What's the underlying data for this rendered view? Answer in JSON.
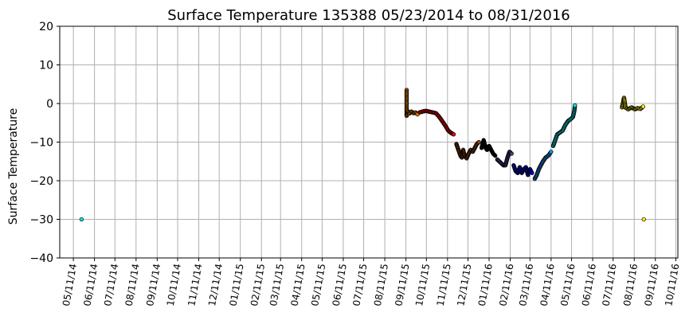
{
  "chart_data": {
    "type": "scatter",
    "title": "Surface Temperature 135388  05/23/2014 to 08/31/2016",
    "xlabel": "",
    "ylabel": "Surface Temperature",
    "ylim": [
      -40,
      20
    ],
    "xlim": [
      "2014-04-21",
      "2016-10-14"
    ],
    "yticks": [
      -40,
      -30,
      -20,
      -10,
      0,
      10,
      20
    ],
    "xtick_labels": [
      "05/11/14",
      "06/11/14",
      "07/11/14",
      "08/11/14",
      "09/11/14",
      "10/11/14",
      "11/11/14",
      "12/11/14",
      "01/11/15",
      "02/11/15",
      "03/11/15",
      "04/11/15",
      "05/11/15",
      "06/11/15",
      "07/11/15",
      "08/11/15",
      "09/11/15",
      "10/11/15",
      "11/11/15",
      "12/11/15",
      "01/11/16",
      "02/11/16",
      "03/11/16",
      "04/11/16",
      "05/11/16",
      "06/11/16",
      "07/11/16",
      "08/11/16",
      "09/11/16",
      "10/11/16"
    ],
    "grid": true,
    "series": [
      {
        "color": "#00e5ee",
        "points": [
          [
            "2014-05-23",
            -30
          ]
        ]
      },
      {
        "color": "#e08000",
        "points": [
          [
            "2015-09-12",
            3.5
          ],
          [
            "2015-09-12",
            -1.2
          ],
          [
            "2015-09-12",
            -3.2
          ],
          [
            "2015-09-14",
            -2.0
          ],
          [
            "2015-09-16",
            -2.6
          ],
          [
            "2015-09-19",
            -2.1
          ],
          [
            "2015-09-22",
            -2.5
          ],
          [
            "2015-09-25",
            -2.3
          ],
          [
            "2015-09-28",
            -2.8
          ]
        ]
      },
      {
        "color": "#ff0000",
        "points": [
          [
            "2015-10-01",
            -2.3
          ],
          [
            "2015-10-05",
            -2.1
          ],
          [
            "2015-10-10",
            -1.9
          ],
          [
            "2015-10-15",
            -2.1
          ],
          [
            "2015-10-20",
            -2.3
          ],
          [
            "2015-10-25",
            -2.5
          ],
          [
            "2015-10-30",
            -3.5
          ],
          [
            "2015-11-03",
            -4.5
          ],
          [
            "2015-11-08",
            -5.8
          ],
          [
            "2015-11-12",
            -7.0
          ],
          [
            "2015-11-16",
            -7.6
          ],
          [
            "2015-11-20",
            -8.0
          ]
        ]
      },
      {
        "color": "#8b4513",
        "points": [
          [
            "2015-11-24",
            -10.5
          ],
          [
            "2015-11-26",
            -11.5
          ],
          [
            "2015-11-28",
            -12.5
          ],
          [
            "2015-11-30",
            -13.5
          ],
          [
            "2015-12-02",
            -14.0
          ],
          [
            "2015-12-04",
            -12.0
          ],
          [
            "2015-12-06",
            -13.5
          ],
          [
            "2015-12-09",
            -14.2
          ],
          [
            "2015-12-12",
            -13.0
          ],
          [
            "2015-12-15",
            -12.0
          ],
          [
            "2015-12-18",
            -12.5
          ],
          [
            "2015-12-21",
            -11.5
          ],
          [
            "2015-12-24",
            -10.5
          ],
          [
            "2015-12-27",
            -10.0
          ]
        ]
      },
      {
        "color": "#000000",
        "points": [
          [
            "2015-12-31",
            -11.5
          ],
          [
            "2016-01-03",
            -9.5
          ],
          [
            "2016-01-06",
            -11.5
          ],
          [
            "2016-01-08",
            -12.0
          ],
          [
            "2016-01-11",
            -11.0
          ],
          [
            "2016-01-14",
            -12.0
          ],
          [
            "2016-01-17",
            -13.0
          ],
          [
            "2016-01-20",
            -13.5
          ]
        ]
      },
      {
        "color": "#483d8b",
        "points": [
          [
            "2016-01-23",
            -14.5
          ],
          [
            "2016-01-26",
            -15.0
          ],
          [
            "2016-01-29",
            -15.5
          ],
          [
            "2016-02-01",
            -16.0
          ],
          [
            "2016-02-04",
            -16.0
          ],
          [
            "2016-02-07",
            -14.0
          ],
          [
            "2016-02-10",
            -12.5
          ],
          [
            "2016-02-13",
            -13.0
          ]
        ]
      },
      {
        "color": "#0000ee",
        "points": [
          [
            "2016-02-16",
            -16.0
          ],
          [
            "2016-02-19",
            -17.5
          ],
          [
            "2016-02-22",
            -18.0
          ],
          [
            "2016-02-25",
            -16.5
          ],
          [
            "2016-02-28",
            -18.0
          ],
          [
            "2016-03-02",
            -17.0
          ],
          [
            "2016-03-05",
            -16.5
          ],
          [
            "2016-03-08",
            -18.5
          ],
          [
            "2016-03-11",
            -17.0
          ],
          [
            "2016-03-14",
            -18.0
          ]
        ]
      },
      {
        "color": "#1e90ff",
        "points": [
          [
            "2016-03-18",
            -19.5
          ],
          [
            "2016-03-21",
            -18.5
          ],
          [
            "2016-03-24",
            -17.0
          ],
          [
            "2016-03-27",
            -16.0
          ],
          [
            "2016-03-30",
            -15.0
          ],
          [
            "2016-04-03",
            -14.0
          ],
          [
            "2016-04-07",
            -13.5
          ],
          [
            "2016-04-11",
            -12.5
          ]
        ]
      },
      {
        "color": "#00e5ee",
        "points": [
          [
            "2016-04-14",
            -11.0
          ],
          [
            "2016-04-17",
            -9.5
          ],
          [
            "2016-04-20",
            -8.0
          ],
          [
            "2016-04-24",
            -7.5
          ],
          [
            "2016-04-28",
            -7.0
          ],
          [
            "2016-05-02",
            -5.5
          ],
          [
            "2016-05-06",
            -4.5
          ],
          [
            "2016-05-10",
            -4.0
          ],
          [
            "2016-05-13",
            -3.5
          ],
          [
            "2016-05-15",
            -2.0
          ],
          [
            "2016-05-16",
            -0.5
          ]
        ]
      },
      {
        "color": "#ffee00",
        "points": [
          [
            "2016-07-24",
            -1.0
          ],
          [
            "2016-07-26",
            0.5
          ],
          [
            "2016-07-27",
            1.5
          ],
          [
            "2016-07-29",
            -1.0
          ],
          [
            "2016-08-02",
            -1.5
          ],
          [
            "2016-08-07",
            -1.0
          ],
          [
            "2016-08-12",
            -1.5
          ],
          [
            "2016-08-16",
            -1.2
          ],
          [
            "2016-08-20",
            -1.4
          ],
          [
            "2016-08-24",
            -0.8
          ],
          [
            "2016-08-25",
            -30.0
          ]
        ]
      }
    ]
  }
}
